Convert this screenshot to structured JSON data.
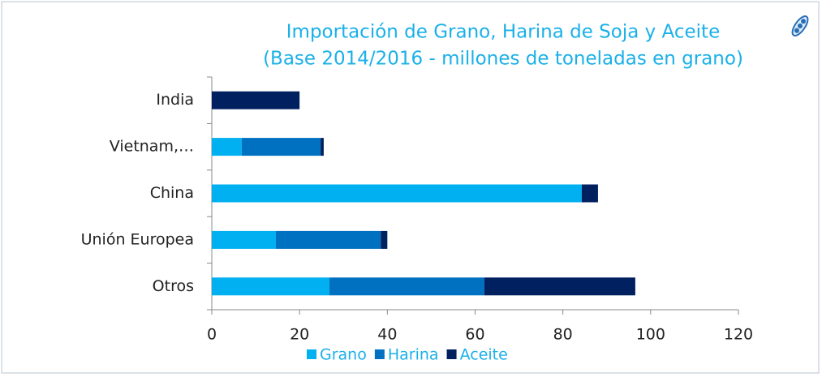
{
  "chart_data": {
    "type": "bar",
    "orientation": "horizontal",
    "stacked": true,
    "title": "Importación de Grano, Harina de Soja y Aceite",
    "subtitle": "(Base 2014/2016 - millones de toneladas en grano)",
    "categories": [
      "India",
      "Vietnam,…",
      "China",
      "Unión Europea",
      "Otros"
    ],
    "series": [
      {
        "name": "Grano",
        "color": "#00b0f0",
        "values": [
          0,
          6.8,
          84.3,
          14.6,
          26.8
        ]
      },
      {
        "name": "Harina",
        "color": "#0070c0",
        "values": [
          0,
          18,
          0,
          23.9,
          35.3
        ]
      },
      {
        "name": "Aceite",
        "color": "#002060",
        "values": [
          20,
          0.7,
          3.7,
          1.5,
          34.4
        ]
      }
    ],
    "xlim": [
      0,
      120
    ],
    "xticks": [
      0,
      20,
      40,
      60,
      80,
      100,
      120
    ],
    "legend": "bottom"
  }
}
